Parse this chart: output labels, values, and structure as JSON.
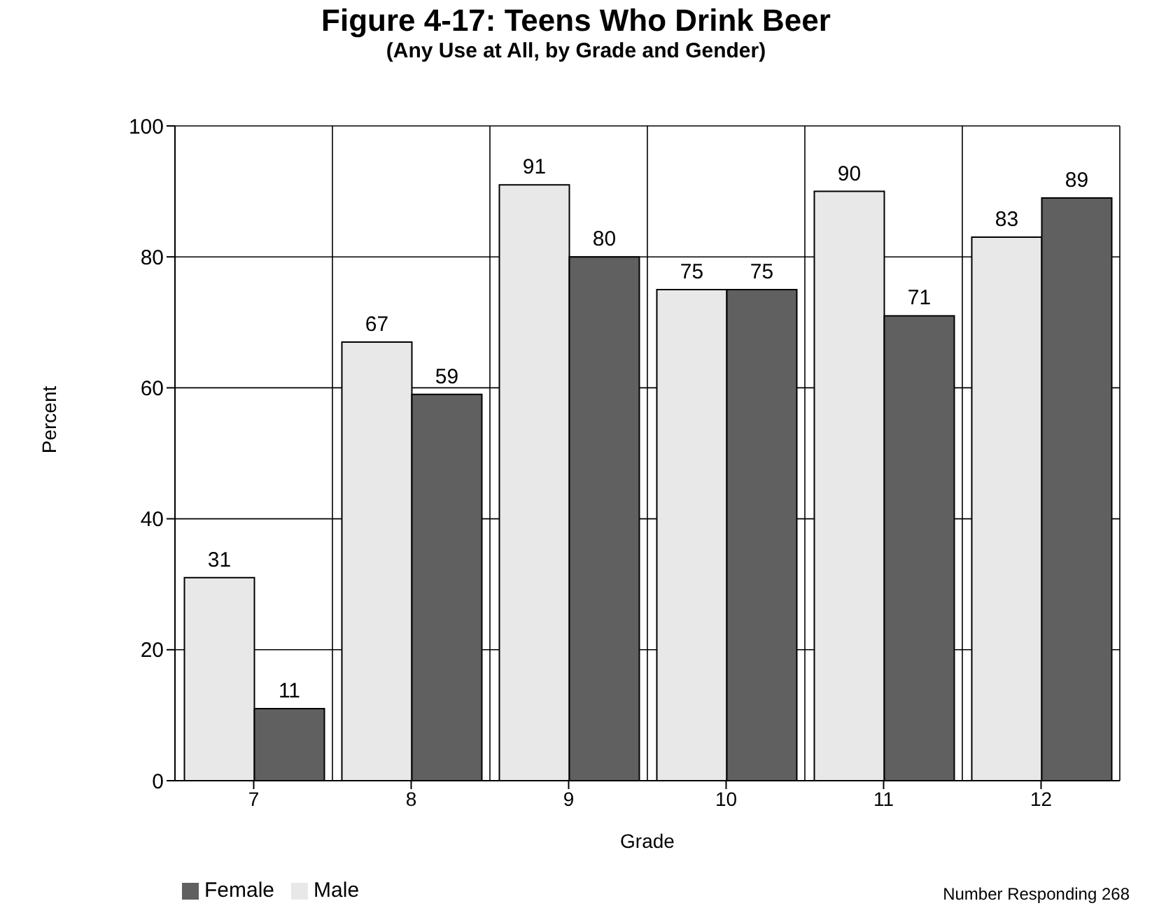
{
  "chart_data": {
    "type": "bar",
    "title": "Figure 4-17: Teens Who Drink Beer",
    "subtitle": "(Any Use at All, by Grade and Gender)",
    "xlabel": "Grade",
    "ylabel": "Percent",
    "categories": [
      "7",
      "8",
      "9",
      "10",
      "11",
      "12"
    ],
    "series": [
      {
        "name": "Male",
        "color": "#e8e8e8",
        "values": [
          31,
          67,
          91,
          75,
          90,
          83
        ]
      },
      {
        "name": "Female",
        "color": "#606060",
        "values": [
          11,
          59,
          80,
          75,
          71,
          89
        ]
      }
    ],
    "ylim": [
      0,
      100
    ],
    "yticks": [
      0,
      20,
      40,
      60,
      80,
      100
    ],
    "grid": true,
    "data_labels": true,
    "legend": "bottom left",
    "annotations": [
      "Number Responding 268"
    ]
  }
}
